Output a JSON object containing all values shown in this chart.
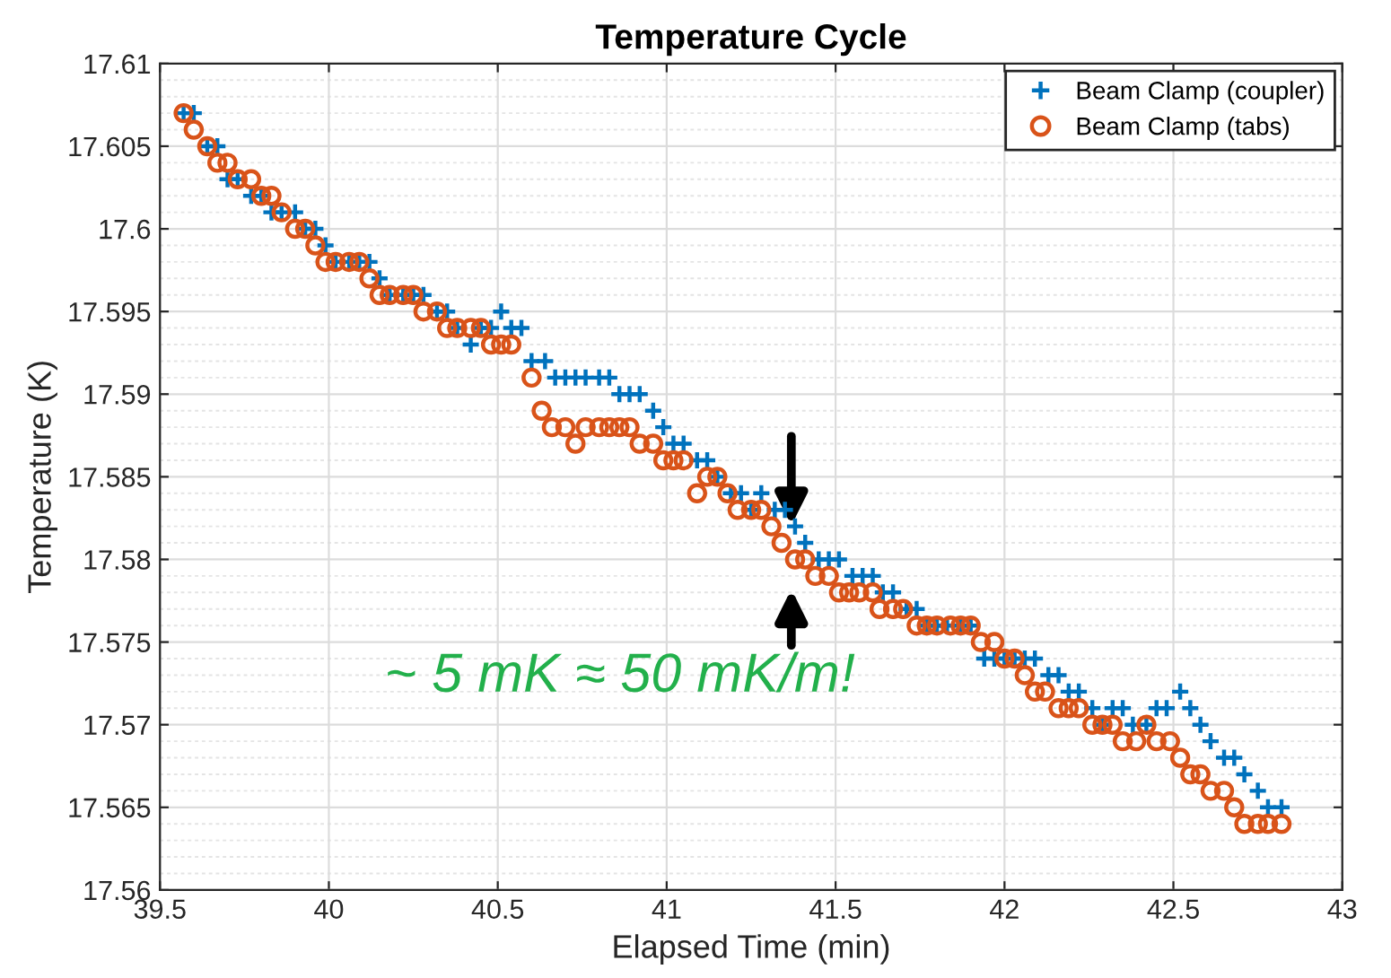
{
  "chart_data": {
    "type": "scatter",
    "title": "Temperature Cycle",
    "xlabel": "Elapsed Time (min)",
    "ylabel": "Temperature (K)",
    "xlim": [
      39.5,
      43
    ],
    "xticks": [
      39.5,
      40,
      40.5,
      41,
      41.5,
      42,
      42.5,
      43
    ],
    "ylim": [
      17.56,
      17.61
    ],
    "yticks": [
      17.56,
      17.565,
      17.57,
      17.575,
      17.58,
      17.585,
      17.59,
      17.595,
      17.6,
      17.605,
      17.61
    ],
    "grid": true,
    "legend": "top right",
    "annotations": [
      "~ 5 mK ≈ 50 mK/m!"
    ],
    "series": [
      {
        "name": "Beam Clamp (coupler)",
        "color": "#0072bd",
        "marker": "cross",
        "x": [
          39.57,
          39.6,
          39.64,
          39.67,
          39.7,
          39.73,
          39.77,
          39.8,
          39.83,
          39.86,
          39.9,
          39.93,
          39.96,
          39.99,
          40.02,
          40.06,
          40.09,
          40.12,
          40.15,
          40.18,
          40.22,
          40.25,
          40.28,
          40.32,
          40.35,
          40.38,
          40.42,
          40.45,
          40.48,
          40.51,
          40.54,
          40.57,
          40.6,
          40.64,
          40.67,
          40.7,
          40.73,
          40.76,
          40.8,
          40.83,
          40.86,
          40.89,
          40.92,
          40.96,
          40.99,
          41.02,
          41.05,
          41.09,
          41.12,
          41.15,
          41.19,
          41.22,
          41.25,
          41.28,
          41.32,
          41.35,
          41.38,
          41.41,
          41.45,
          41.48,
          41.51,
          41.55,
          41.58,
          41.61,
          41.64,
          41.67,
          41.71,
          41.74,
          41.77,
          41.8,
          41.83,
          41.87,
          41.9,
          41.94,
          41.97,
          42.0,
          42.03,
          42.06,
          42.09,
          42.13,
          42.16,
          42.19,
          42.22,
          42.26,
          42.29,
          42.32,
          42.35,
          42.38,
          42.42,
          42.45,
          42.48,
          42.52,
          42.55,
          42.58,
          42.61,
          42.65,
          42.68,
          42.71,
          42.75,
          42.78,
          42.82
        ],
        "values": [
          17.607,
          17.607,
          17.605,
          17.605,
          17.603,
          17.603,
          17.602,
          17.602,
          17.601,
          17.601,
          17.601,
          17.6,
          17.6,
          17.599,
          17.598,
          17.598,
          17.598,
          17.598,
          17.597,
          17.596,
          17.596,
          17.596,
          17.596,
          17.595,
          17.595,
          17.594,
          17.593,
          17.594,
          17.594,
          17.595,
          17.594,
          17.594,
          17.592,
          17.592,
          17.591,
          17.591,
          17.591,
          17.591,
          17.591,
          17.591,
          17.59,
          17.59,
          17.59,
          17.589,
          17.588,
          17.587,
          17.587,
          17.586,
          17.586,
          17.585,
          17.584,
          17.584,
          17.583,
          17.584,
          17.583,
          17.583,
          17.582,
          17.581,
          17.58,
          17.58,
          17.58,
          17.579,
          17.579,
          17.579,
          17.578,
          17.578,
          17.577,
          17.577,
          17.576,
          17.576,
          17.576,
          17.576,
          17.576,
          17.574,
          17.574,
          17.574,
          17.574,
          17.574,
          17.574,
          17.573,
          17.573,
          17.572,
          17.572,
          17.571,
          17.57,
          17.571,
          17.571,
          17.57,
          17.57,
          17.571,
          17.571,
          17.572,
          17.571,
          17.57,
          17.569,
          17.568,
          17.568,
          17.567,
          17.566,
          17.565,
          17.565
        ]
      },
      {
        "name": "Beam Clamp (tabs)",
        "color": "#d95319",
        "marker": "circle",
        "x": [
          39.57,
          39.6,
          39.64,
          39.67,
          39.7,
          39.73,
          39.77,
          39.8,
          39.83,
          39.86,
          39.9,
          39.93,
          39.96,
          39.99,
          40.02,
          40.06,
          40.09,
          40.12,
          40.15,
          40.18,
          40.22,
          40.25,
          40.28,
          40.32,
          40.35,
          40.38,
          40.42,
          40.45,
          40.48,
          40.51,
          40.54,
          40.6,
          40.63,
          40.66,
          40.7,
          40.73,
          40.76,
          40.8,
          40.83,
          40.86,
          40.89,
          40.92,
          40.96,
          40.99,
          41.02,
          41.05,
          41.09,
          41.12,
          41.15,
          41.18,
          41.21,
          41.25,
          41.28,
          41.31,
          41.34,
          41.38,
          41.41,
          41.44,
          41.48,
          41.51,
          41.54,
          41.57,
          41.61,
          41.63,
          41.67,
          41.7,
          41.74,
          41.77,
          41.8,
          41.84,
          41.87,
          41.9,
          41.93,
          41.97,
          42.0,
          42.03,
          42.06,
          42.09,
          42.12,
          42.16,
          42.19,
          42.22,
          42.26,
          42.29,
          42.32,
          42.35,
          42.39,
          42.42,
          42.45,
          42.49,
          42.52,
          42.55,
          42.58,
          42.61,
          42.65,
          42.68,
          42.71,
          42.75,
          42.78,
          42.82
        ],
        "values": [
          17.607,
          17.606,
          17.605,
          17.604,
          17.604,
          17.603,
          17.603,
          17.602,
          17.602,
          17.601,
          17.6,
          17.6,
          17.599,
          17.598,
          17.598,
          17.598,
          17.598,
          17.597,
          17.596,
          17.596,
          17.596,
          17.596,
          17.595,
          17.595,
          17.594,
          17.594,
          17.594,
          17.594,
          17.593,
          17.593,
          17.593,
          17.591,
          17.589,
          17.588,
          17.588,
          17.587,
          17.588,
          17.588,
          17.588,
          17.588,
          17.588,
          17.587,
          17.587,
          17.586,
          17.586,
          17.586,
          17.584,
          17.585,
          17.585,
          17.584,
          17.583,
          17.583,
          17.583,
          17.582,
          17.581,
          17.58,
          17.58,
          17.579,
          17.579,
          17.578,
          17.578,
          17.578,
          17.578,
          17.577,
          17.577,
          17.577,
          17.576,
          17.576,
          17.576,
          17.576,
          17.576,
          17.576,
          17.575,
          17.575,
          17.574,
          17.574,
          17.573,
          17.572,
          17.572,
          17.571,
          17.571,
          17.571,
          17.57,
          17.57,
          17.57,
          17.569,
          17.569,
          17.57,
          17.569,
          17.569,
          17.568,
          17.567,
          17.567,
          17.566,
          17.566,
          17.565,
          17.564,
          17.564,
          17.564,
          17.564
        ]
      }
    ]
  }
}
